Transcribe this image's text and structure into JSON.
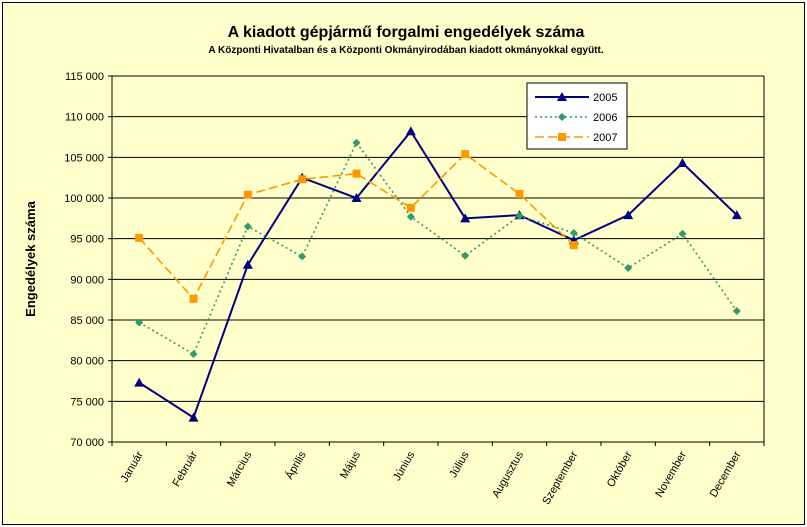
{
  "chart_data": {
    "type": "line",
    "title": "A  kiadott gépjármű forgalmi engedélyek száma",
    "subtitle": "A  Központi Hivatalban és a Központi Okmányirodában kiadott okmányokkal együtt.",
    "ylabel": "Engedélyek száma",
    "xlabel": "",
    "ylim": [
      70000,
      115000
    ],
    "yticks": [
      70000,
      75000,
      80000,
      85000,
      90000,
      95000,
      100000,
      105000,
      110000,
      115000
    ],
    "ytick_labels": [
      "70 000",
      "75 000",
      "80 000",
      "85 000",
      "90 000",
      "95 000",
      "100 000",
      "105 000",
      "110 000",
      "115 000"
    ],
    "categories": [
      "Január",
      "Február",
      "Március",
      "Április",
      "Május",
      "Június",
      "Július",
      "Augusztus",
      "Szeptember",
      "Október",
      "November",
      "December"
    ],
    "grid": true,
    "legend_position": "top-right",
    "series": [
      {
        "name": "2005",
        "color": "#000080",
        "style": "solid",
        "marker": "triangle",
        "values": [
          77300,
          73000,
          91800,
          102500,
          100000,
          108200,
          97500,
          97900,
          94800,
          97900,
          104300,
          97900
        ]
      },
      {
        "name": "2006",
        "color": "#339966",
        "style": "dotted",
        "marker": "diamond",
        "values": [
          84700,
          80800,
          96500,
          92800,
          106800,
          97700,
          92900,
          97800,
          95700,
          91400,
          95600,
          86100
        ]
      },
      {
        "name": "2007",
        "color": "#ff9900",
        "style": "dashed",
        "marker": "square",
        "values": [
          95100,
          87600,
          100400,
          102300,
          103000,
          98800,
          105400,
          100500,
          94200,
          null,
          null,
          null
        ]
      }
    ]
  }
}
